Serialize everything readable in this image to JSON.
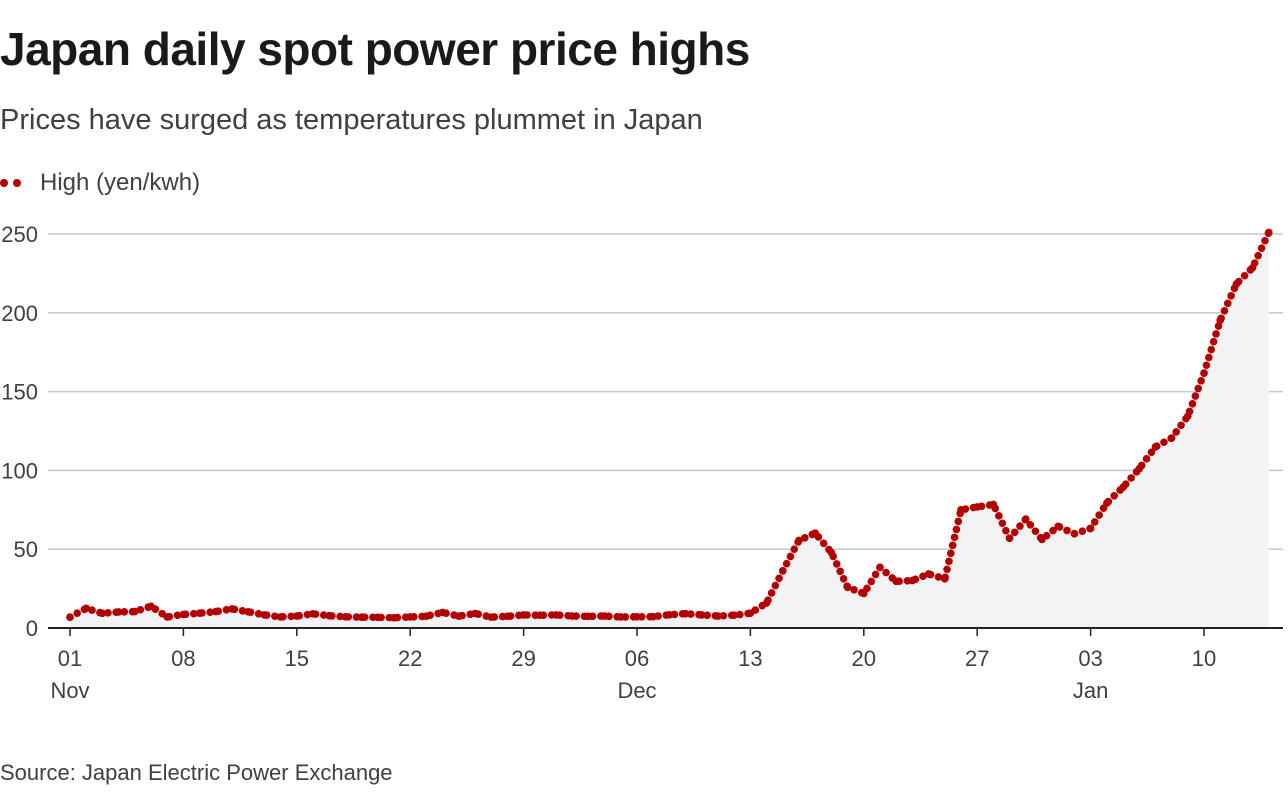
{
  "title": "Japan daily spot power price highs",
  "subtitle": "Prices have surged as temperatures plummet in Japan",
  "source": "Source: Japan Electric Power Exchange",
  "colors": {
    "series": "#b30000",
    "area": "#f3f3f3",
    "grid": "#c8c8c8",
    "axis": "#222222"
  },
  "chart_data": {
    "type": "scatter",
    "title": "Japan daily spot power price highs",
    "subtitle": "Prices have surged as temperatures plummet in Japan",
    "xlabel": "",
    "ylabel": "",
    "ylim": [
      0,
      250
    ],
    "yticks": [
      0,
      50,
      100,
      150,
      200,
      250
    ],
    "grid": true,
    "legend_position": "top-left",
    "x_ticks": [
      {
        "day": "01",
        "month": "Nov",
        "date": "2020-11-01"
      },
      {
        "day": "08",
        "month": "",
        "date": "2020-11-08"
      },
      {
        "day": "15",
        "month": "",
        "date": "2020-11-15"
      },
      {
        "day": "22",
        "month": "",
        "date": "2020-11-22"
      },
      {
        "day": "29",
        "month": "",
        "date": "2020-11-29"
      },
      {
        "day": "06",
        "month": "Dec",
        "date": "2020-12-06"
      },
      {
        "day": "13",
        "month": "",
        "date": "2020-12-13"
      },
      {
        "day": "20",
        "month": "",
        "date": "2020-12-20"
      },
      {
        "day": "27",
        "month": "",
        "date": "2020-12-27"
      },
      {
        "day": "03",
        "month": "Jan",
        "date": "2021-01-03"
      },
      {
        "day": "10",
        "month": "",
        "date": "2021-01-10"
      }
    ],
    "series": [
      {
        "name": "High (yen/kwh)",
        "points": [
          {
            "date": "2020-11-01",
            "value": 6.9
          },
          {
            "date": "2020-11-02",
            "value": 12.5
          },
          {
            "date": "2020-11-03",
            "value": 9.3
          },
          {
            "date": "2020-11-04",
            "value": 10.2
          },
          {
            "date": "2020-11-05",
            "value": 10.4
          },
          {
            "date": "2020-11-06",
            "value": 13.8
          },
          {
            "date": "2020-11-07",
            "value": 7.0
          },
          {
            "date": "2020-11-08",
            "value": 8.6
          },
          {
            "date": "2020-11-09",
            "value": 9.4
          },
          {
            "date": "2020-11-10",
            "value": 10.4
          },
          {
            "date": "2020-11-11",
            "value": 12.1
          },
          {
            "date": "2020-11-12",
            "value": 10.3
          },
          {
            "date": "2020-11-13",
            "value": 8.3
          },
          {
            "date": "2020-11-14",
            "value": 7.0
          },
          {
            "date": "2020-11-15",
            "value": 7.6
          },
          {
            "date": "2020-11-16",
            "value": 9.0
          },
          {
            "date": "2020-11-17",
            "value": 7.8
          },
          {
            "date": "2020-11-18",
            "value": 7.1
          },
          {
            "date": "2020-11-19",
            "value": 6.9
          },
          {
            "date": "2020-11-20",
            "value": 6.8
          },
          {
            "date": "2020-11-21",
            "value": 6.5
          },
          {
            "date": "2020-11-22",
            "value": 7.0
          },
          {
            "date": "2020-11-23",
            "value": 7.5
          },
          {
            "date": "2020-11-24",
            "value": 9.9
          },
          {
            "date": "2020-11-25",
            "value": 7.5
          },
          {
            "date": "2020-11-26",
            "value": 9.2
          },
          {
            "date": "2020-11-27",
            "value": 6.9
          },
          {
            "date": "2020-11-28",
            "value": 7.4
          },
          {
            "date": "2020-11-29",
            "value": 8.3
          },
          {
            "date": "2020-11-30",
            "value": 8.1
          },
          {
            "date": "2020-12-01",
            "value": 8.3
          },
          {
            "date": "2020-12-02",
            "value": 7.6
          },
          {
            "date": "2020-12-03",
            "value": 7.4
          },
          {
            "date": "2020-12-04",
            "value": 7.6
          },
          {
            "date": "2020-12-05",
            "value": 7.0
          },
          {
            "date": "2020-12-06",
            "value": 7.1
          },
          {
            "date": "2020-12-07",
            "value": 7.2
          },
          {
            "date": "2020-12-08",
            "value": 8.4
          },
          {
            "date": "2020-12-09",
            "value": 9.1
          },
          {
            "date": "2020-12-10",
            "value": 8.3
          },
          {
            "date": "2020-12-11",
            "value": 7.6
          },
          {
            "date": "2020-12-12",
            "value": 8.1
          },
          {
            "date": "2020-12-13",
            "value": 9.4
          },
          {
            "date": "2020-12-14",
            "value": 15.9
          },
          {
            "date": "2020-12-15",
            "value": 36.3
          },
          {
            "date": "2020-12-16",
            "value": 55.6
          },
          {
            "date": "2020-12-17",
            "value": 60.2
          },
          {
            "date": "2020-12-18",
            "value": 47.9
          },
          {
            "date": "2020-12-19",
            "value": 25.8
          },
          {
            "date": "2020-12-20",
            "value": 21.9
          },
          {
            "date": "2020-12-21",
            "value": 38.5
          },
          {
            "date": "2020-12-22",
            "value": 29.6
          },
          {
            "date": "2020-12-23",
            "value": 30.1
          },
          {
            "date": "2020-12-24",
            "value": 34.3
          },
          {
            "date": "2020-12-25",
            "value": 31.2
          },
          {
            "date": "2020-12-26",
            "value": 75.0
          },
          {
            "date": "2020-12-27",
            "value": 76.8
          },
          {
            "date": "2020-12-28",
            "value": 78.4
          },
          {
            "date": "2020-12-29",
            "value": 56.9
          },
          {
            "date": "2020-12-30",
            "value": 69.1
          },
          {
            "date": "2020-12-31",
            "value": 56.2
          },
          {
            "date": "2021-01-01",
            "value": 64.5
          },
          {
            "date": "2021-01-02",
            "value": 59.8
          },
          {
            "date": "2021-01-03",
            "value": 63.2
          },
          {
            "date": "2021-01-04",
            "value": 79.3
          },
          {
            "date": "2021-01-05",
            "value": 89.3
          },
          {
            "date": "2021-01-06",
            "value": 101.0
          },
          {
            "date": "2021-01-07",
            "value": 114.9
          },
          {
            "date": "2021-01-08",
            "value": 120.5
          },
          {
            "date": "2021-01-09",
            "value": 134.4
          },
          {
            "date": "2021-01-10",
            "value": 161.7
          },
          {
            "date": "2021-01-11",
            "value": 195.2
          },
          {
            "date": "2021-01-12",
            "value": 218.3
          },
          {
            "date": "2021-01-13",
            "value": 228.6
          },
          {
            "date": "2021-01-14",
            "value": 251.0
          }
        ]
      }
    ]
  }
}
